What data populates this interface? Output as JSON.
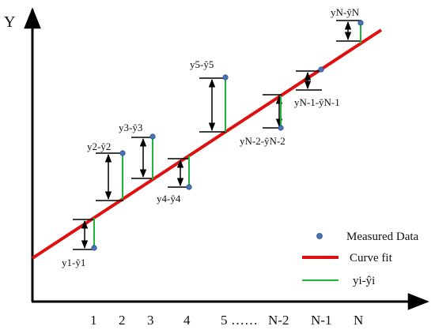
{
  "axes": {
    "y_label": "Y",
    "x_ticks": [
      "1",
      "2",
      "3",
      "4",
      "5",
      "……",
      "N-2",
      "N-1",
      "N"
    ]
  },
  "legend": {
    "items": [
      {
        "label": "Measured Data",
        "kind": "point",
        "color": "#4a74b8"
      },
      {
        "label": "Curve fit",
        "kind": "line",
        "color": "#e01010"
      },
      {
        "label": "yi-ŷi",
        "kind": "line",
        "color": "#1fb53a"
      }
    ]
  },
  "residual_labels": [
    {
      "base": "y1-ŷ1",
      "name": "y1-y1hat-label"
    },
    {
      "base": "y2-ŷ2",
      "name": "y2-y2hat-label"
    },
    {
      "base": "y3-ŷ3",
      "name": "y3-y3hat-label"
    },
    {
      "base": "y4-ŷ4",
      "name": "y4-y4hat-label"
    },
    {
      "base": "y5-ŷ5",
      "name": "y5-y5hat-label"
    },
    {
      "base": "yN-2-ŷN-2",
      "name": "yN2-label"
    },
    {
      "base": "yN-1-ŷN-1",
      "name": "yN1-label"
    },
    {
      "base": "yN-ŷN",
      "name": "yN-label"
    }
  ],
  "colors": {
    "axis": "#000000",
    "fit_line": "#e01010",
    "residual": "#1fb53a",
    "point": "#4a74b8",
    "point_stroke": "#2d4f8a"
  }
}
